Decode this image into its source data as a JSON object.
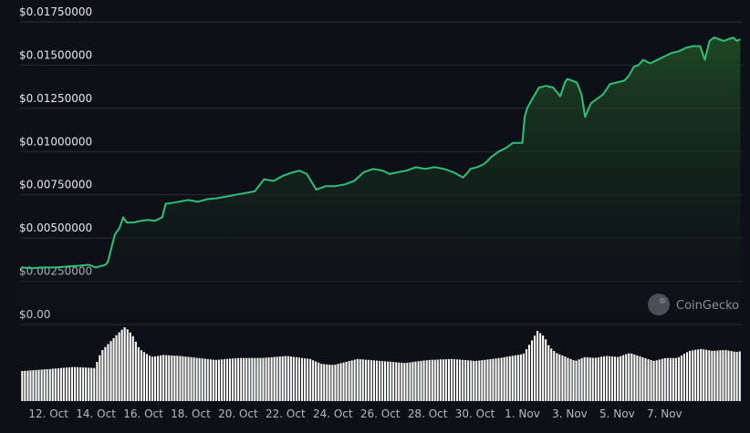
{
  "watermark": {
    "label": "CoinGecko",
    "icon": "coingecko-logo-icon"
  },
  "colors": {
    "background": "#0d1117",
    "line": "#2fbf7a",
    "area_top": "#1f4a25",
    "grid": "#2a2f36",
    "volume": "#ffffff"
  },
  "chart_data": {
    "type": "area",
    "title": "",
    "xlabel": "",
    "ylabel": "",
    "ylim": [
      0,
      0.0175
    ],
    "yticks": [
      {
        "value": 0.0,
        "label": "$0.00"
      },
      {
        "value": 0.0025,
        "label": "$0.00250000"
      },
      {
        "value": 0.005,
        "label": "$0.00500000"
      },
      {
        "value": 0.0075,
        "label": "$0.00750000"
      },
      {
        "value": 0.01,
        "label": "$0.01000000"
      },
      {
        "value": 0.0125,
        "label": "$0.01250000"
      },
      {
        "value": 0.015,
        "label": "$0.01500000"
      },
      {
        "value": 0.0175,
        "label": "$0.01750000"
      }
    ],
    "xlim": [
      10.8,
      41.3
    ],
    "xticks": [
      {
        "value": 12,
        "label": "12. Oct"
      },
      {
        "value": 14,
        "label": "14. Oct"
      },
      {
        "value": 16,
        "label": "16. Oct"
      },
      {
        "value": 18,
        "label": "18. Oct"
      },
      {
        "value": 20,
        "label": "20. Oct"
      },
      {
        "value": 22,
        "label": "22. Oct"
      },
      {
        "value": 24,
        "label": "24. Oct"
      },
      {
        "value": 26,
        "label": "26. Oct"
      },
      {
        "value": 28,
        "label": "28. Oct"
      },
      {
        "value": 30,
        "label": "30. Oct"
      },
      {
        "value": 32,
        "label": "1. Nov"
      },
      {
        "value": 34,
        "label": "3. Nov"
      },
      {
        "value": 36,
        "label": "5. Nov"
      },
      {
        "value": 38,
        "label": "7. Nov"
      }
    ],
    "grid": true,
    "series": [
      {
        "kind": "price",
        "x": [
          10.85,
          11.3,
          11.8,
          12.3,
          12.8,
          13.3,
          13.7,
          14.0,
          14.4,
          14.5,
          14.8,
          15.0,
          15.15,
          15.3,
          15.6,
          15.9,
          16.2,
          16.5,
          16.8,
          16.95,
          17.1,
          17.5,
          17.9,
          18.3,
          18.7,
          19.1,
          19.5,
          19.9,
          20.3,
          20.7,
          21.1,
          21.5,
          21.9,
          22.3,
          22.6,
          22.9,
          23.3,
          23.7,
          24.1,
          24.5,
          24.9,
          25.3,
          25.7,
          26.1,
          26.4,
          26.7,
          27.1,
          27.5,
          27.9,
          28.3,
          28.7,
          29.1,
          29.5,
          29.7,
          29.8,
          30.1,
          30.4,
          30.7,
          31.0,
          31.3,
          31.6,
          31.9,
          32.0,
          32.1,
          32.2,
          32.4,
          32.7,
          33.0,
          33.3,
          33.6,
          33.8,
          33.9,
          34.1,
          34.3,
          34.5,
          34.65,
          34.8,
          34.9,
          35.1,
          35.4,
          35.7,
          36.0,
          36.3,
          36.5,
          36.7,
          36.9,
          37.1,
          37.4,
          37.7,
          38.0,
          38.3,
          38.6,
          38.9,
          39.2,
          39.5,
          39.7,
          39.9,
          40.1,
          40.3,
          40.5,
          40.7,
          40.9,
          41.05,
          41.2
        ],
        "y": [
          0.0033,
          0.00325,
          0.0033,
          0.0033,
          0.00335,
          0.0034,
          0.00345,
          0.0033,
          0.00345,
          0.0036,
          0.0052,
          0.0056,
          0.0062,
          0.0059,
          0.0059,
          0.006,
          0.00605,
          0.006,
          0.0062,
          0.007,
          0.007,
          0.0071,
          0.0072,
          0.0071,
          0.00725,
          0.0073,
          0.0074,
          0.0075,
          0.0076,
          0.0077,
          0.0084,
          0.0083,
          0.0086,
          0.0088,
          0.0089,
          0.0087,
          0.0078,
          0.008,
          0.008,
          0.0081,
          0.0083,
          0.0088,
          0.009,
          0.0089,
          0.0087,
          0.0088,
          0.0089,
          0.0091,
          0.009,
          0.0091,
          0.009,
          0.0088,
          0.0085,
          0.0088,
          0.009,
          0.0091,
          0.0093,
          0.0097,
          0.01,
          0.0102,
          0.0105,
          0.0105,
          0.0105,
          0.012,
          0.0125,
          0.013,
          0.0137,
          0.0138,
          0.0137,
          0.0132,
          0.014,
          0.0142,
          0.0141,
          0.014,
          0.0133,
          0.012,
          0.0125,
          0.0128,
          0.013,
          0.0133,
          0.0139,
          0.014,
          0.0141,
          0.0144,
          0.0149,
          0.015,
          0.0153,
          0.0151,
          0.0153,
          0.0155,
          0.0157,
          0.0158,
          0.016,
          0.0161,
          0.0161,
          0.0153,
          0.0164,
          0.0166,
          0.0165,
          0.0164,
          0.0165,
          0.0166,
          0.0164,
          0.0165
        ]
      },
      {
        "kind": "volume",
        "x": [
          10.85,
          12.0,
          13.0,
          13.9,
          14.2,
          14.6,
          15.0,
          15.2,
          15.5,
          15.8,
          16.3,
          16.8,
          17.5,
          18.3,
          19.0,
          20.0,
          21.0,
          22.0,
          23.0,
          23.5,
          24.0,
          25.0,
          26.0,
          27.0,
          28.0,
          29.0,
          30.0,
          31.0,
          31.5,
          32.0,
          32.3,
          32.6,
          32.9,
          33.1,
          33.4,
          33.8,
          34.2,
          34.6,
          35.0,
          35.5,
          36.0,
          36.5,
          37.0,
          37.5,
          38.0,
          38.5,
          39.0,
          39.5,
          40.0,
          40.5,
          41.0,
          41.25
        ],
        "y": [
          0.3,
          0.32,
          0.34,
          0.33,
          0.5,
          0.6,
          0.7,
          0.74,
          0.66,
          0.52,
          0.44,
          0.46,
          0.45,
          0.43,
          0.41,
          0.43,
          0.43,
          0.45,
          0.42,
          0.37,
          0.36,
          0.42,
          0.4,
          0.38,
          0.41,
          0.42,
          0.4,
          0.43,
          0.45,
          0.47,
          0.58,
          0.7,
          0.64,
          0.54,
          0.48,
          0.44,
          0.4,
          0.44,
          0.43,
          0.45,
          0.44,
          0.48,
          0.44,
          0.4,
          0.43,
          0.43,
          0.5,
          0.52,
          0.5,
          0.51,
          0.49,
          0.5
        ]
      }
    ]
  }
}
